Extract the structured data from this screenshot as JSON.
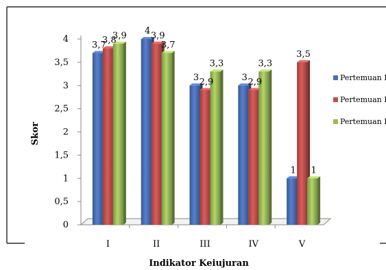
{
  "chart_data": {
    "type": "bar",
    "title": "",
    "xlabel": "Indikator Keiujuran",
    "ylabel": "Skor",
    "categories": [
      "I",
      "II",
      "III",
      "IV",
      "V"
    ],
    "series": [
      {
        "name": "Pertemuan I",
        "color": "#4a6fb5",
        "values": [
          3.7,
          4.0,
          3.0,
          3.0,
          1.0
        ],
        "labels": [
          "3,7",
          "4",
          "3",
          "3",
          "1"
        ]
      },
      {
        "name": "Pertemuan II",
        "color": "#c0504d",
        "values": [
          3.8,
          3.9,
          2.9,
          2.9,
          3.5
        ],
        "labels": [
          "3,8",
          "3,9",
          "2,9",
          "2,9",
          "3,5"
        ]
      },
      {
        "name": "Pertemuan III",
        "color": "#9bbb59",
        "values": [
          3.9,
          3.7,
          3.3,
          3.3,
          1.0
        ],
        "labels": [
          "3,9",
          "3,7",
          "3,3",
          "3,3",
          "1"
        ]
      }
    ],
    "y_ticks": [
      "0",
      "0,5",
      "1",
      "1,5",
      "2",
      "2,5",
      "3",
      "3,5",
      "4"
    ],
    "ylim": [
      0,
      4
    ],
    "grid": false,
    "legend": "right"
  }
}
